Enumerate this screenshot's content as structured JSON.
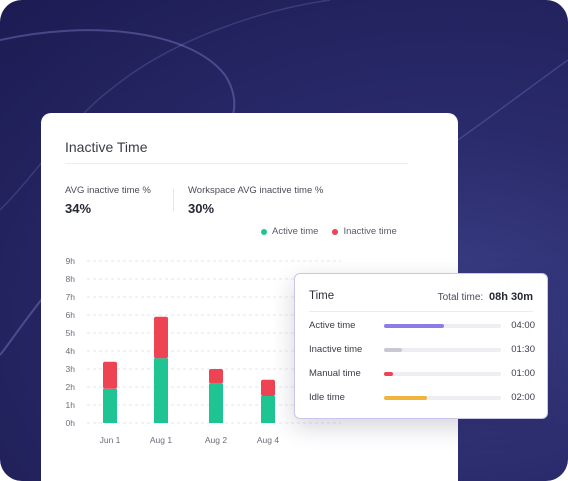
{
  "card": {
    "title": "Inactive Time",
    "stats": [
      {
        "label": "AVG inactive time %",
        "value": "34%"
      },
      {
        "label": "Workspace AVG inactive time %",
        "value": "30%"
      }
    ],
    "legend": [
      {
        "label": "Active time",
        "color": "#1fc493"
      },
      {
        "label": "Inactive time",
        "color": "#ee4353"
      }
    ]
  },
  "chart_data": {
    "type": "bar",
    "stacked": true,
    "categories": [
      "Jun 1",
      "Aug 1",
      "Aug 2",
      "Aug 4"
    ],
    "series": [
      {
        "name": "Active time",
        "color": "#1fc493",
        "values": [
          1.9,
          3.6,
          2.2,
          1.5
        ]
      },
      {
        "name": "Inactive time",
        "color": "#ee4353",
        "values": [
          1.5,
          2.3,
          0.8,
          0.9
        ]
      }
    ],
    "y_ticks": [
      "0h",
      "1h",
      "2h",
      "3h",
      "4h",
      "5h",
      "6h",
      "7h",
      "8h",
      "9h"
    ],
    "ylim": [
      0,
      9
    ],
    "grid": true,
    "legend_position": "top-right"
  },
  "tooltip": {
    "title": "Time",
    "total_label": "Total time:",
    "total_value": "08h 30m",
    "rows": [
      {
        "label": "Active time",
        "value": "04:00",
        "color": "#8e7be8",
        "fraction": 0.51
      },
      {
        "label": "Inactive time",
        "value": "01:30",
        "color": "#c8c8d6",
        "fraction": 0.15
      },
      {
        "label": "Manual time",
        "value": "01:00",
        "color": "#ee4353",
        "fraction": 0.08
      },
      {
        "label": "Idle time",
        "value": "02:00",
        "color": "#f0b43c",
        "fraction": 0.37
      }
    ]
  }
}
